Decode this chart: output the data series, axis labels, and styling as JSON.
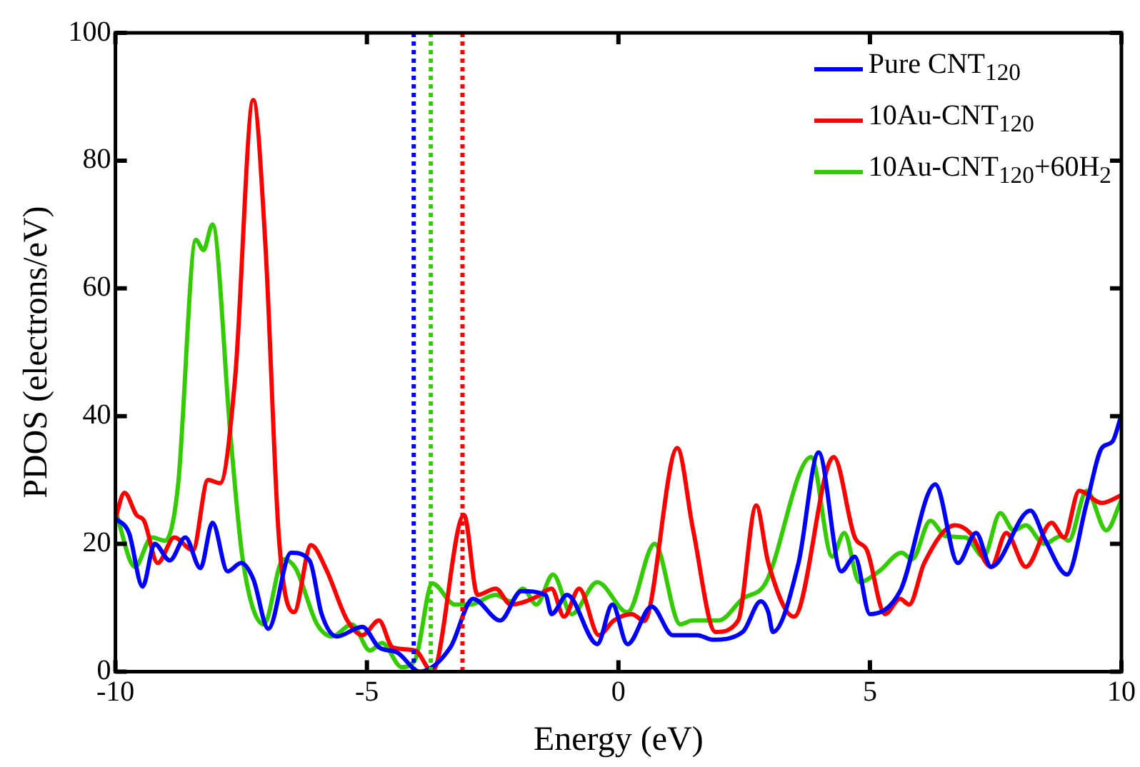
{
  "chart_data": {
    "type": "line",
    "xlabel": "Energy (eV)",
    "ylabel": "PDOS (electrons/eV)",
    "xlim": [
      -10,
      10
    ],
    "xticks": [
      -10,
      -5,
      0,
      5,
      10
    ],
    "ylim": [
      0,
      100
    ],
    "yticks": [
      0,
      20,
      40,
      60,
      80,
      100
    ],
    "grid": false,
    "legend": "top right",
    "marker": "none",
    "line_style": "solid",
    "series": [
      {
        "name": "Pure CNT$_{120}$",
        "color": "#0000ff",
        "x": [
          -10,
          -9.73,
          -9.46,
          -9.22,
          -8.92,
          -8.61,
          -8.31,
          -8.07,
          -7.77,
          -7.5,
          -7.26,
          -6.96,
          -6.51,
          -6.14,
          -5.9,
          -5.6,
          -5.09,
          -4.76,
          -4.4,
          -3.95,
          -3.34,
          -2.89,
          -2.35,
          -1.93,
          -1.45,
          -1.33,
          -1.02,
          -0.42,
          -0.12,
          0.18,
          0.66,
          1.08,
          1.57,
          1.87,
          2.47,
          2.83,
          2.98,
          3.07,
          3.58,
          3.98,
          4.43,
          4.7,
          5,
          5.6,
          6.3,
          6.75,
          7.11,
          7.41,
          8.19,
          8.49,
          8.92,
          9.31,
          9.61,
          9.82,
          10
        ],
        "values": [
          24,
          21.7,
          13.3,
          20,
          17.4,
          21,
          16.2,
          23.3,
          15.7,
          17,
          14.5,
          6.7,
          18.6,
          17.4,
          9,
          5.5,
          7,
          3.8,
          3,
          0,
          3.8,
          11.4,
          8,
          12.6,
          12,
          9,
          12,
          4.3,
          10.5,
          4.3,
          10.2,
          5.7,
          5.7,
          5,
          6.2,
          11,
          9.3,
          6.2,
          17,
          34.3,
          15.7,
          18,
          9,
          12.6,
          29.3,
          17,
          21.7,
          16.4,
          25.2,
          20.5,
          15.2,
          26.4,
          35,
          36,
          40.2
        ]
      },
      {
        "name": "10Au-CNT$_{120}$",
        "color": "#ff0000",
        "x": [
          -10,
          -9.82,
          -9.58,
          -9.43,
          -9.16,
          -8.83,
          -8.46,
          -8.16,
          -7.92,
          -7.62,
          -7.26,
          -7.02,
          -6.75,
          -6.45,
          -6.11,
          -5.81,
          -5.39,
          -5.09,
          -4.76,
          -4.49,
          -4.04,
          -3.7,
          -3.07,
          -2.8,
          -2.44,
          -2.14,
          -1.63,
          -1.33,
          -1.08,
          -0.78,
          -0.39,
          -0.09,
          0.27,
          0.51,
          1.17,
          1.48,
          1.93,
          2.38,
          2.74,
          2.98,
          3.49,
          4.28,
          4.7,
          4.94,
          5.3,
          5.6,
          5.78,
          6.08,
          6.69,
          6.99,
          7.41,
          7.71,
          8.1,
          8.61,
          8.86,
          9.16,
          9.61,
          10
        ],
        "values": [
          24,
          28,
          24.5,
          23.6,
          17,
          21,
          19,
          30,
          29.5,
          46,
          89.5,
          67,
          21,
          9.3,
          19.8,
          16,
          8,
          5.7,
          8,
          3.8,
          3.3,
          0,
          24.5,
          12,
          13,
          10.5,
          11.7,
          13,
          8.6,
          13,
          5.7,
          8,
          9,
          7.9,
          35,
          22.4,
          6.2,
          8,
          26,
          17,
          8.6,
          33.6,
          21,
          19,
          9,
          11.4,
          10.5,
          17,
          22.9,
          21.7,
          16.4,
          21.7,
          16.4,
          23.3,
          21,
          28.3,
          26.4,
          27.6
        ]
      },
      {
        "name": "10Au-CNT$_{120}$+60H$_{2}$",
        "color": "#33cc00",
        "x": [
          -10,
          -9.61,
          -9.28,
          -9.01,
          -8.76,
          -8.4,
          -8.25,
          -8.07,
          -7.71,
          -7.47,
          -7.05,
          -6.66,
          -6.42,
          -5.99,
          -5.69,
          -5.3,
          -4.94,
          -4.7,
          -4.31,
          -4.04,
          -3.7,
          -3.25,
          -2.95,
          -2.44,
          -2.14,
          -1.9,
          -1.63,
          -1.3,
          -0.93,
          -0.42,
          0.18,
          0.72,
          1.23,
          1.48,
          1.99,
          2.47,
          2.92,
          3.83,
          4.25,
          4.49,
          4.79,
          5.18,
          5.63,
          5.84,
          6.2,
          6.51,
          6.9,
          7.26,
          7.59,
          7.86,
          8.1,
          8.46,
          8.8,
          8.95,
          9.31,
          9.7,
          10
        ],
        "values": [
          25.2,
          16.4,
          21,
          20.5,
          28.8,
          67.6,
          66,
          70,
          36.7,
          17.6,
          7.4,
          17.6,
          16.2,
          7.4,
          5.5,
          7.4,
          3.3,
          4.5,
          0.7,
          1.9,
          13.8,
          10.5,
          10.5,
          12,
          11,
          13,
          10.5,
          15.2,
          9,
          14,
          9.3,
          20,
          7.4,
          8,
          8,
          11.4,
          13.8,
          33.6,
          18,
          21.7,
          14,
          15.7,
          18.6,
          17.6,
          23.6,
          21.2,
          21,
          18,
          24.8,
          22.1,
          22.9,
          20,
          21.2,
          20.5,
          28.3,
          22.1,
          26.9
        ]
      }
    ],
    "ref_lines": [
      {
        "axis": "x",
        "value": -4.07,
        "color": "#0000ff",
        "line_style": "dotted"
      },
      {
        "axis": "x",
        "value": -3.73,
        "color": "#33cc00",
        "line_style": "dotted"
      },
      {
        "axis": "x",
        "value": -3.1,
        "color": "#ff0000",
        "line_style": "dotted"
      }
    ]
  }
}
